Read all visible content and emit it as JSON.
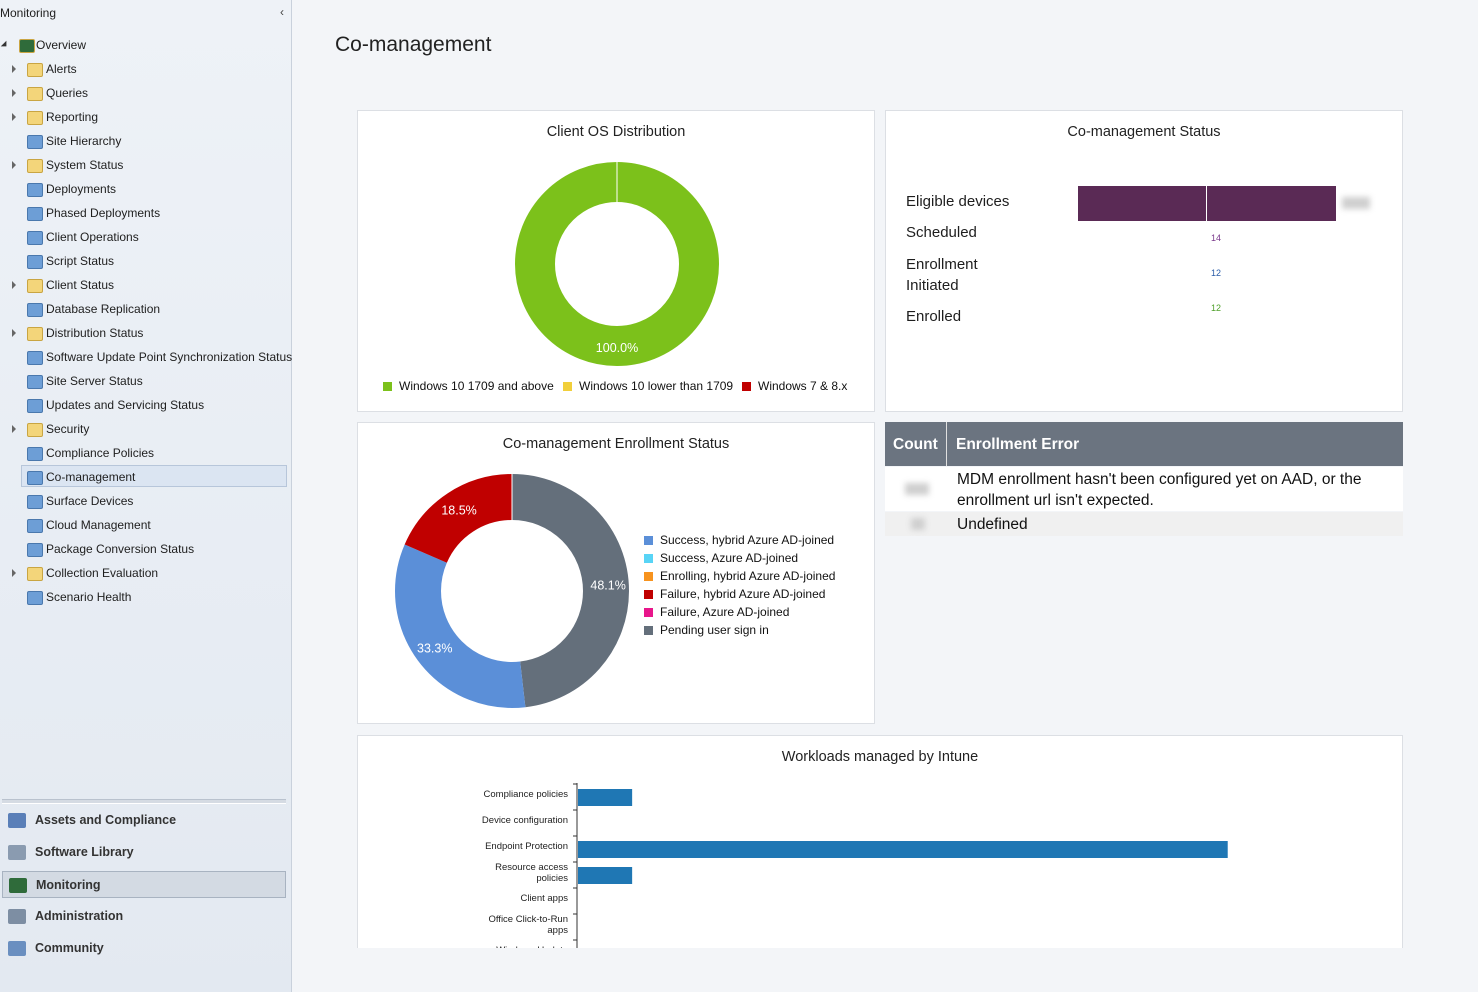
{
  "sidebar": {
    "header": "Monitoring",
    "tree": [
      {
        "label": "Overview",
        "expandable": true
      },
      {
        "label": "Alerts",
        "expandable": true
      },
      {
        "label": "Queries",
        "expandable": true
      },
      {
        "label": "Reporting",
        "expandable": true
      },
      {
        "label": "Site Hierarchy",
        "expandable": false
      },
      {
        "label": "System Status",
        "expandable": true
      },
      {
        "label": "Deployments",
        "expandable": false
      },
      {
        "label": "Phased Deployments",
        "expandable": false
      },
      {
        "label": "Client Operations",
        "expandable": false
      },
      {
        "label": "Script Status",
        "expandable": false
      },
      {
        "label": "Client Status",
        "expandable": true
      },
      {
        "label": "Database Replication",
        "expandable": false
      },
      {
        "label": "Distribution Status",
        "expandable": true
      },
      {
        "label": "Software Update Point Synchronization Status",
        "expandable": false
      },
      {
        "label": "Site Server Status",
        "expandable": false
      },
      {
        "label": "Updates and Servicing Status",
        "expandable": false
      },
      {
        "label": "Security",
        "expandable": true
      },
      {
        "label": "Compliance Policies",
        "expandable": false
      },
      {
        "label": "Co-management",
        "expandable": false
      },
      {
        "label": "Surface Devices",
        "expandable": false
      },
      {
        "label": "Cloud Management",
        "expandable": false
      },
      {
        "label": "Package Conversion Status",
        "expandable": false
      },
      {
        "label": "Collection Evaluation",
        "expandable": true
      },
      {
        "label": "Scenario Health",
        "expandable": false
      }
    ],
    "workspaces": [
      "Assets and Compliance",
      "Software Library",
      "Monitoring",
      "Administration",
      "Community"
    ]
  },
  "title": "Co-management",
  "chart_data": [
    {
      "type": "donut",
      "title": "Client OS Distribution",
      "categories": [
        "Windows 10 1709 and above",
        "Windows 10 lower than 1709",
        "Windows 7 & 8.x"
      ],
      "values": [
        100,
        0,
        0
      ],
      "value_labels": [
        "100.0%",
        null,
        null
      ],
      "colors": [
        "#7cc11b",
        "#f1cf3b",
        "#c00000"
      ]
    },
    {
      "type": "donut",
      "title": "Co-management Enrollment Status",
      "categories": [
        "Success, hybrid Azure AD-joined",
        "Success, Azure AD-joined",
        "Enrolling, hybrid Azure AD-joined",
        "Failure, hybrid Azure AD-joined",
        "Failure, Azure AD-joined",
        "Pending user sign in"
      ],
      "values": [
        33.3,
        0,
        0,
        18.5,
        0,
        48.1
      ],
      "value_labels": [
        "33.3%",
        null,
        null,
        "18.5%",
        null,
        "48.1%"
      ],
      "colors": [
        "#5b8fd8",
        "#58d4f6",
        "#f7931e",
        "#c00000",
        "#e8168b",
        "#646f7b"
      ]
    },
    {
      "type": "hbar",
      "title": "Workloads managed by Intune",
      "categories": [
        "Compliance policies",
        "Device configuration",
        "Endpoint Protection",
        "Resource access policies",
        "Client apps",
        "Office Click-to-Run apps",
        "Windows Update"
      ],
      "values": [
        1,
        0,
        12,
        1,
        0,
        0,
        0
      ],
      "xlim": [
        0,
        14
      ],
      "color": "#1f77b4"
    }
  ],
  "status_panel": {
    "title": "Co-management Status",
    "rows": [
      {
        "label": "Eligible devices"
      },
      {
        "label": "Scheduled",
        "value": 14,
        "color": "#7b3a8c"
      },
      {
        "label": "Enrollment Initiated",
        "value": 12,
        "color": "#2a5ca8"
      },
      {
        "label": "Enrolled",
        "value": 12,
        "color": "#4fa02a"
      }
    ]
  },
  "error_table": {
    "headers": [
      "Count",
      "Enrollment Error"
    ],
    "rows": [
      [
        "MDM enrollment hasn't been configured yet on AAD, or the enrollment url isn't expected."
      ],
      [
        "Undefined"
      ]
    ]
  }
}
